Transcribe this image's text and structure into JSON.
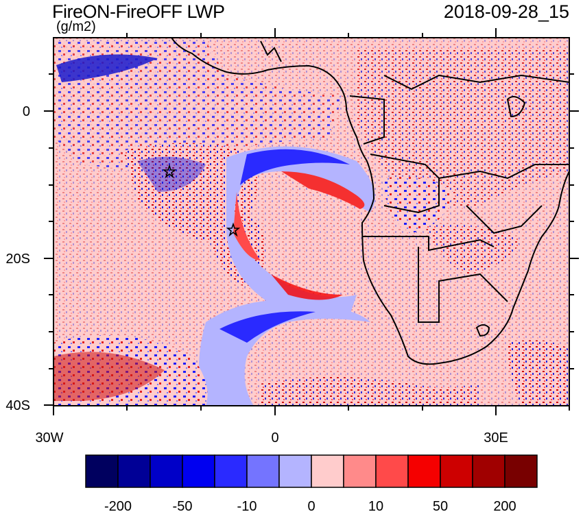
{
  "title": "FireON-FireOFF LWP",
  "units": "(g/m2)",
  "datetime": "2018-09-28_15",
  "y_axis_labels": [
    "0",
    "20S",
    "40S"
  ],
  "x_axis_labels": [
    "30W",
    "0",
    "30E"
  ],
  "colorbar": {
    "colors": [
      "#00005f",
      "#000096",
      "#0000c8",
      "#0000f0",
      "#2a2aff",
      "#7474ff",
      "#b4b4ff",
      "#ffcccc",
      "#ff8a8a",
      "#ff4a4a",
      "#f50000",
      "#cd0000",
      "#a00000",
      "#780000"
    ],
    "labels": [
      "-200",
      "-50",
      "-10",
      "0",
      "10",
      "50",
      "200"
    ]
  },
  "colors": {
    "background_diff": "#ffcccc",
    "outline": "#000000"
  },
  "icons": [
    "star-marker-icon"
  ]
}
